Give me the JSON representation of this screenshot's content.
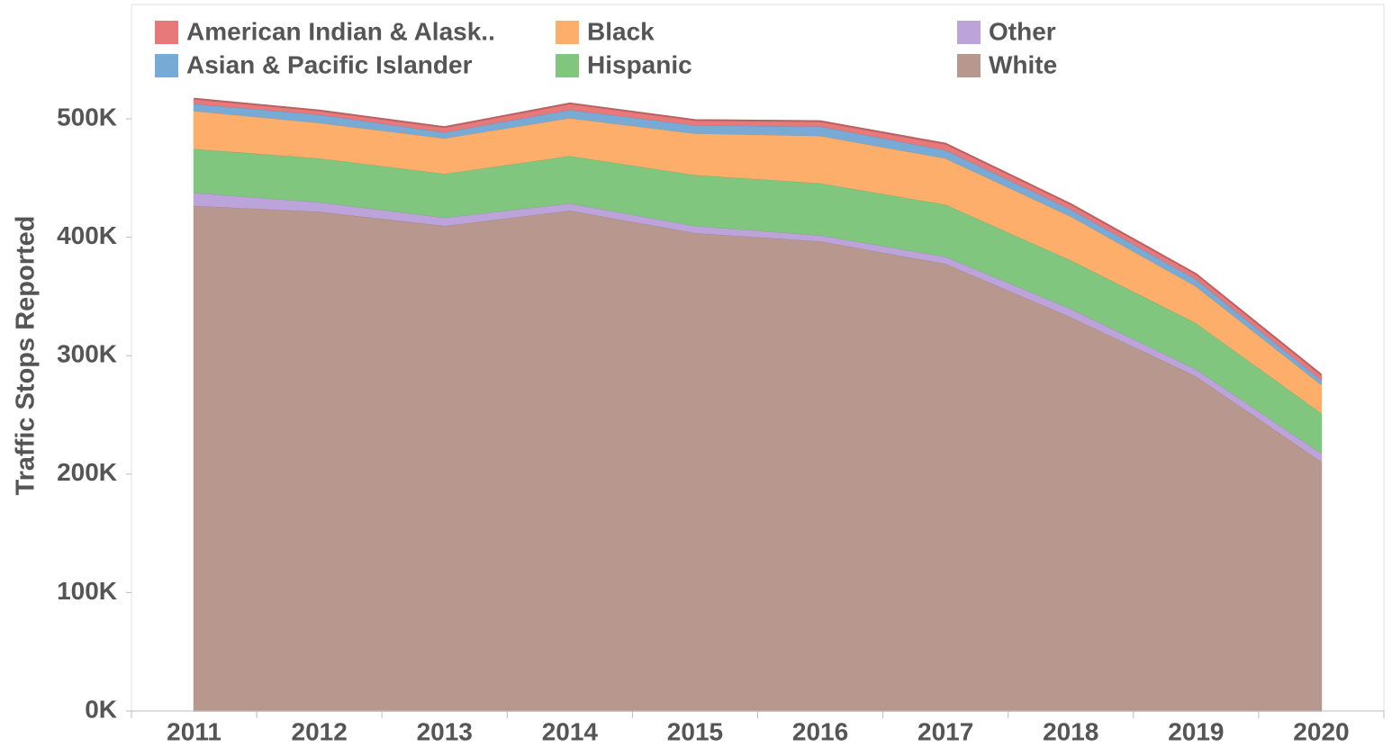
{
  "chart_data": {
    "type": "stacked_area",
    "y_label": "Traffic Stops Reported",
    "categories": [
      "2011",
      "2012",
      "2013",
      "2014",
      "2015",
      "2016",
      "2017",
      "2018",
      "2019",
      "2020"
    ],
    "series": [
      {
        "name": "American Indian & Alask..",
        "color": "#e8797b",
        "values": [
          4000,
          3000,
          4000,
          5000,
          4000,
          4000,
          5000,
          4000,
          4000,
          4000
        ]
      },
      {
        "name": "Asian & Pacific Islander",
        "color": "#77aad4",
        "values": [
          6000,
          7000,
          5000,
          7000,
          7000,
          8000,
          7000,
          6000,
          6000,
          4000
        ]
      },
      {
        "name": "Black",
        "color": "#feae6b",
        "values": [
          32000,
          30000,
          30000,
          32000,
          35000,
          40000,
          39000,
          37000,
          31000,
          24000
        ]
      },
      {
        "name": "Hispanic",
        "color": "#80c67e",
        "values": [
          37000,
          37000,
          37000,
          40000,
          43000,
          44000,
          44000,
          41000,
          39000,
          34000
        ]
      },
      {
        "name": "Other",
        "color": "#bca3da",
        "values": [
          11000,
          8000,
          7000,
          6000,
          6000,
          5000,
          6000,
          7000,
          6000,
          7000
        ]
      },
      {
        "name": "White",
        "color": "#b8978e",
        "values": [
          427000,
          422000,
          410000,
          423000,
          404000,
          397000,
          378000,
          333000,
          283000,
          211000
        ]
      }
    ],
    "stack_order": "reverse",
    "ylim": [
      0,
      600000
    ],
    "yticks": [
      {
        "value": 0,
        "label": "0K"
      },
      {
        "value": 100000,
        "label": "100K"
      },
      {
        "value": 200000,
        "label": "200K"
      },
      {
        "value": 300000,
        "label": "300K"
      },
      {
        "value": 400000,
        "label": "400K"
      },
      {
        "value": 500000,
        "label": "500K"
      }
    ],
    "legend": "top"
  }
}
